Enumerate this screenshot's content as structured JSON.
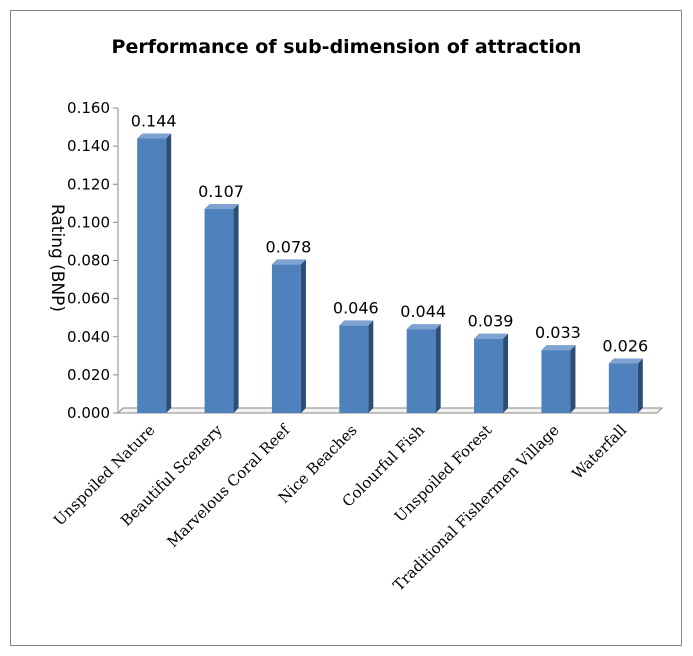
{
  "chart_data": {
    "type": "bar",
    "title": "Performance of sub-dimension of attraction",
    "ylabel": "Rating (BNP)",
    "xlabel": "",
    "ylim": [
      0,
      0.16
    ],
    "yticks": [
      "0.000",
      "0.020",
      "0.040",
      "0.060",
      "0.080",
      "0.100",
      "0.120",
      "0.140",
      "0.160"
    ],
    "categories": [
      "Unspoiled Nature",
      "Beautiful Scenery",
      "Marvelous Coral Reef",
      "Nice Beaches",
      "Colourful Fish",
      "Unspoiled Forest",
      "Traditional Fishermen Village",
      "Waterfall"
    ],
    "values": [
      0.144,
      0.107,
      0.078,
      0.046,
      0.044,
      0.039,
      0.033,
      0.026
    ],
    "value_labels": [
      "0.144",
      "0.107",
      "0.078",
      "0.046",
      "0.044",
      "0.039",
      "0.033",
      "0.026"
    ],
    "grid": false,
    "legend": "none",
    "style": "3d-column",
    "colors": {
      "bar_front": "#4F81BD",
      "bar_side": "#2C4D75",
      "bar_top": "#7FA3D0"
    }
  }
}
